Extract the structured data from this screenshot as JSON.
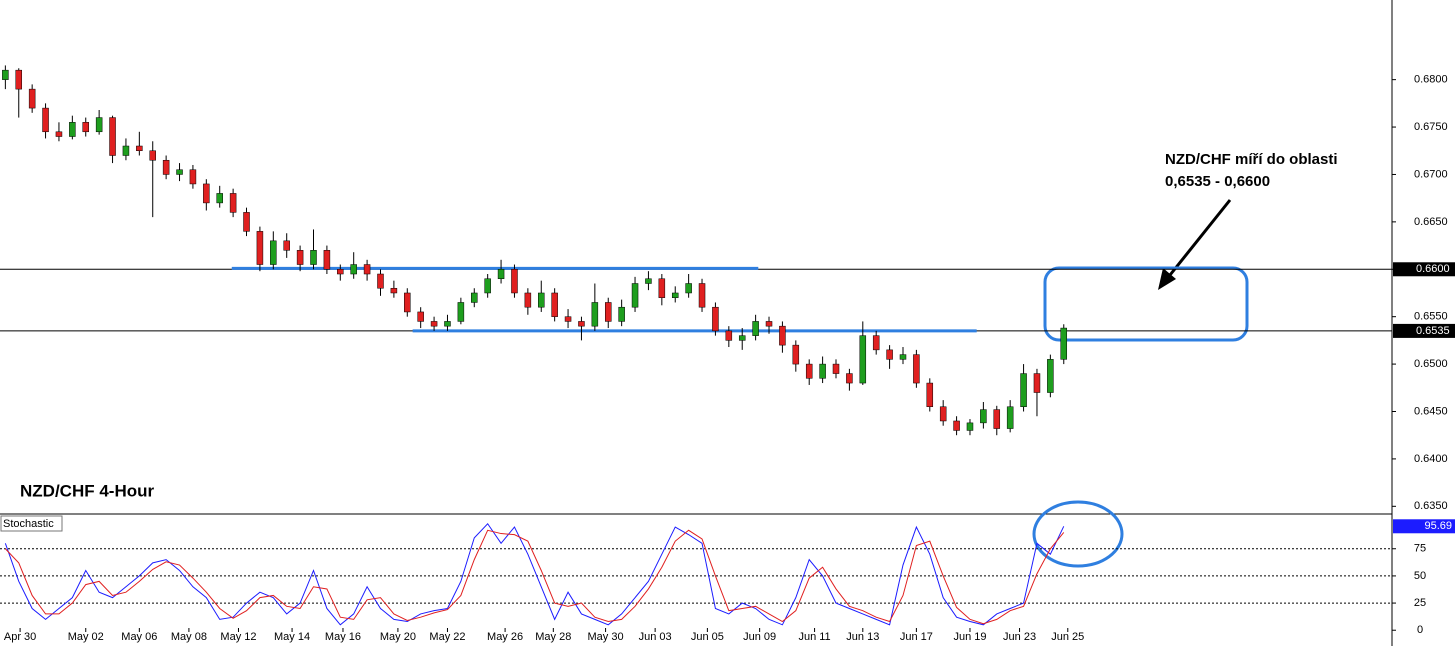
{
  "chart_data": [
    {
      "type": "candlestick",
      "title": "NZD/CHF 4-Hour",
      "annotation": [
        "NZD/CHF míří do oblasti",
        "0,6535 - 0,6600"
      ],
      "up_color": "#1e9e1e",
      "down_color": "#e02020",
      "wick_color": "#000000",
      "xlim": [
        -0.4,
        103.5
      ],
      "ylim": [
        0.6344,
        0.6884
      ],
      "yticks": [
        {
          "value": 0.635,
          "label": "0.6350"
        },
        {
          "value": 0.64,
          "label": "0.6400"
        },
        {
          "value": 0.645,
          "label": "0.6450"
        },
        {
          "value": 0.65,
          "label": "0.6500"
        },
        {
          "value": 0.655,
          "label": "0.6550"
        },
        {
          "value": 0.66,
          "label": "0.6600"
        },
        {
          "value": 0.665,
          "label": "0.6650"
        },
        {
          "value": 0.67,
          "label": "0.6700"
        },
        {
          "value": 0.675,
          "label": "0.6750"
        },
        {
          "value": 0.68,
          "label": "0.6800"
        }
      ],
      "xticks": [
        {
          "value": 1.1,
          "label": "Apr 30"
        },
        {
          "value": 6,
          "label": "May 02"
        },
        {
          "value": 10,
          "label": "May 06"
        },
        {
          "value": 13.7,
          "label": "May 08"
        },
        {
          "value": 17.4,
          "label": "May 12"
        },
        {
          "value": 21.4,
          "label": "May 14"
        },
        {
          "value": 25.2,
          "label": "May 16"
        },
        {
          "value": 29.3,
          "label": "May 20"
        },
        {
          "value": 33,
          "label": "May 22"
        },
        {
          "value": 37.3,
          "label": "May 26"
        },
        {
          "value": 40.9,
          "label": "May 28"
        },
        {
          "value": 44.8,
          "label": "May 30"
        },
        {
          "value": 48.5,
          "label": "Jun 03"
        },
        {
          "value": 52.4,
          "label": "Jun 05"
        },
        {
          "value": 56.3,
          "label": "Jun 09"
        },
        {
          "value": 60.4,
          "label": "Jun 11"
        },
        {
          "value": 64,
          "label": "Jun 13"
        },
        {
          "value": 68,
          "label": "Jun 17"
        },
        {
          "value": 72,
          "label": "Jun 19"
        },
        {
          "value": 75.7,
          "label": "Jun 23"
        },
        {
          "value": 79.3,
          "label": "Jun 25"
        }
      ],
      "hlines": [
        {
          "value": 0.66,
          "label": "0.6600"
        },
        {
          "value": 0.6535,
          "label": "0.6535"
        }
      ],
      "level_color": "#2f7fe0",
      "levels": [
        {
          "value": 0.6601,
          "x": [
            16.9,
            56.2
          ]
        },
        {
          "value": 0.6535,
          "x": [
            30.4,
            72.5
          ]
        }
      ],
      "ohlc": [
        [
          0.68,
          0.6815,
          0.679,
          0.681
        ],
        [
          0.681,
          0.6812,
          0.676,
          0.679
        ],
        [
          0.679,
          0.6795,
          0.6765,
          0.677
        ],
        [
          0.677,
          0.6775,
          0.6738,
          0.6745
        ],
        [
          0.6745,
          0.6755,
          0.6735,
          0.674
        ],
        [
          0.674,
          0.6762,
          0.6737,
          0.6755
        ],
        [
          0.6755,
          0.676,
          0.674,
          0.6745
        ],
        [
          0.6745,
          0.6768,
          0.6742,
          0.676
        ],
        [
          0.676,
          0.6762,
          0.6712,
          0.672
        ],
        [
          0.672,
          0.6738,
          0.6715,
          0.673
        ],
        [
          0.673,
          0.6745,
          0.672,
          0.6725
        ],
        [
          0.6725,
          0.6735,
          0.6655,
          0.6715
        ],
        [
          0.6715,
          0.672,
          0.6695,
          0.67
        ],
        [
          0.67,
          0.6712,
          0.6693,
          0.6705
        ],
        [
          0.6705,
          0.671,
          0.6685,
          0.669
        ],
        [
          0.669,
          0.6695,
          0.6662,
          0.667
        ],
        [
          0.667,
          0.6688,
          0.6665,
          0.668
        ],
        [
          0.668,
          0.6685,
          0.6655,
          0.666
        ],
        [
          0.666,
          0.6665,
          0.6635,
          0.664
        ],
        [
          0.664,
          0.6645,
          0.6598,
          0.6605
        ],
        [
          0.6605,
          0.664,
          0.66,
          0.663
        ],
        [
          0.663,
          0.6638,
          0.6612,
          0.662
        ],
        [
          0.662,
          0.6625,
          0.6598,
          0.6605
        ],
        [
          0.6605,
          0.6642,
          0.66,
          0.662
        ],
        [
          0.662,
          0.6625,
          0.6595,
          0.66
        ],
        [
          0.66,
          0.6605,
          0.6588,
          0.6595
        ],
        [
          0.6595,
          0.6618,
          0.659,
          0.6605
        ],
        [
          0.6605,
          0.661,
          0.6588,
          0.6595
        ],
        [
          0.6595,
          0.66,
          0.6572,
          0.658
        ],
        [
          0.658,
          0.6588,
          0.657,
          0.6575
        ],
        [
          0.6575,
          0.658,
          0.655,
          0.6555
        ],
        [
          0.6555,
          0.656,
          0.6538,
          0.6545
        ],
        [
          0.6545,
          0.655,
          0.6535,
          0.654
        ],
        [
          0.654,
          0.6552,
          0.6535,
          0.6545
        ],
        [
          0.6545,
          0.657,
          0.6542,
          0.6565
        ],
        [
          0.6565,
          0.658,
          0.656,
          0.6575
        ],
        [
          0.6575,
          0.6595,
          0.657,
          0.659
        ],
        [
          0.659,
          0.661,
          0.6585,
          0.66
        ],
        [
          0.66,
          0.6605,
          0.657,
          0.6575
        ],
        [
          0.6575,
          0.658,
          0.6552,
          0.656
        ],
        [
          0.656,
          0.6588,
          0.6555,
          0.6575
        ],
        [
          0.6575,
          0.658,
          0.6545,
          0.655
        ],
        [
          0.655,
          0.6558,
          0.6538,
          0.6545
        ],
        [
          0.6545,
          0.655,
          0.6525,
          0.654
        ],
        [
          0.654,
          0.6585,
          0.6535,
          0.6565
        ],
        [
          0.6565,
          0.657,
          0.6538,
          0.6545
        ],
        [
          0.6545,
          0.6568,
          0.654,
          0.656
        ],
        [
          0.656,
          0.6592,
          0.6555,
          0.6585
        ],
        [
          0.6585,
          0.6598,
          0.6578,
          0.659
        ],
        [
          0.659,
          0.6595,
          0.6562,
          0.657
        ],
        [
          0.657,
          0.6582,
          0.6565,
          0.6575
        ],
        [
          0.6575,
          0.6595,
          0.657,
          0.6585
        ],
        [
          0.6585,
          0.659,
          0.6555,
          0.656
        ],
        [
          0.656,
          0.6565,
          0.653,
          0.6535
        ],
        [
          0.6535,
          0.654,
          0.6518,
          0.6525
        ],
        [
          0.6525,
          0.6538,
          0.6515,
          0.653
        ],
        [
          0.653,
          0.6552,
          0.6525,
          0.6545
        ],
        [
          0.6545,
          0.655,
          0.6532,
          0.654
        ],
        [
          0.654,
          0.6545,
          0.6512,
          0.652
        ],
        [
          0.652,
          0.6525,
          0.6492,
          0.65
        ],
        [
          0.65,
          0.6505,
          0.6478,
          0.6485
        ],
        [
          0.6485,
          0.6508,
          0.648,
          0.65
        ],
        [
          0.65,
          0.6505,
          0.6485,
          0.649
        ],
        [
          0.649,
          0.6495,
          0.6472,
          0.648
        ],
        [
          0.648,
          0.6545,
          0.6478,
          0.653
        ],
        [
          0.653,
          0.6535,
          0.651,
          0.6515
        ],
        [
          0.6515,
          0.652,
          0.6495,
          0.6505
        ],
        [
          0.6505,
          0.6518,
          0.65,
          0.651
        ],
        [
          0.651,
          0.6515,
          0.6475,
          0.648
        ],
        [
          0.648,
          0.6485,
          0.645,
          0.6455
        ],
        [
          0.6455,
          0.6462,
          0.6435,
          0.644
        ],
        [
          0.644,
          0.6445,
          0.6425,
          0.643
        ],
        [
          0.643,
          0.6442,
          0.6425,
          0.6438
        ],
        [
          0.6438,
          0.646,
          0.6432,
          0.6452
        ],
        [
          0.6452,
          0.6456,
          0.6425,
          0.6432
        ],
        [
          0.6432,
          0.6462,
          0.6428,
          0.6455
        ],
        [
          0.6455,
          0.65,
          0.645,
          0.649
        ],
        [
          0.649,
          0.6495,
          0.6445,
          0.647
        ],
        [
          0.647,
          0.651,
          0.6465,
          0.6505
        ],
        [
          0.6505,
          0.6542,
          0.65,
          0.6538
        ]
      ]
    },
    {
      "type": "line",
      "title": "Stochastic",
      "ylim": [
        -9,
        107
      ],
      "yticks": [
        0,
        25,
        50,
        75
      ],
      "series": [
        {
          "color": "#1c1cff",
          "values": [
            80,
            45,
            20,
            10,
            20,
            30,
            55,
            35,
            30,
            40,
            50,
            62,
            65,
            55,
            40,
            30,
            10,
            12,
            25,
            35,
            30,
            15,
            25,
            55,
            20,
            5,
            15,
            40,
            20,
            10,
            8,
            15,
            18,
            20,
            45,
            85,
            98,
            80,
            95,
            70,
            40,
            10,
            35,
            15,
            10,
            5,
            15,
            30,
            45,
            70,
            95,
            88,
            80,
            20,
            15,
            25,
            20,
            10,
            5,
            30,
            65,
            50,
            25,
            20,
            15,
            10,
            5,
            60,
            95,
            70,
            30,
            12,
            8,
            5,
            15,
            20,
            25,
            80,
            70,
            95.69
          ]
        },
        {
          "color": "#e02020",
          "values": [
            75,
            62,
            32,
            15,
            15,
            25,
            42,
            45,
            32,
            35,
            45,
            56,
            63,
            60,
            48,
            35,
            20,
            11,
            18,
            30,
            32,
            22,
            20,
            40,
            38,
            12,
            10,
            28,
            30,
            15,
            9,
            12,
            16,
            19,
            32,
            65,
            92,
            89,
            88,
            82,
            55,
            25,
            22,
            25,
            12,
            8,
            10,
            22,
            38,
            58,
            82,
            92,
            84,
            50,
            18,
            20,
            22,
            15,
            8,
            18,
            48,
            58,
            38,
            22,
            18,
            12,
            8,
            32,
            78,
            82,
            50,
            21,
            10,
            6,
            10,
            18,
            22,
            52,
            75,
            90
          ]
        }
      ]
    }
  ]
}
